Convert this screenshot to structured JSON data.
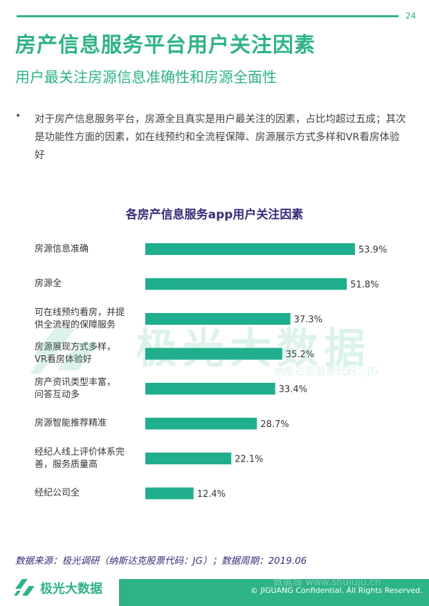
{
  "page_number": "24",
  "title": "房产信息服务平台用户关注因素",
  "subtitle": "用户最关注房源信息准确性和房源全面性",
  "bullet": "对于房产信息服务平台，房源全且真实是用户最关注的因素，占比均超过五成；其次是功能性方面的因素，如在线预约和全流程保障、房源展示方式多样和VR看房体验好",
  "colors": {
    "accent": "#2eb386",
    "title_purple": "#3b2a7a"
  },
  "chart_data": {
    "type": "bar",
    "orientation": "horizontal",
    "title": "各房产信息服务app用户关注因素",
    "categories": [
      [
        "房源信息准确"
      ],
      [
        "房源全"
      ],
      [
        "可在线预约看房，并提",
        "供全流程的保障服务"
      ],
      [
        "房源展现方式多样，",
        "VR看房体验好"
      ],
      [
        "房产资讯类型丰富，",
        "问答互动多"
      ],
      [
        "房源智能推荐精准"
      ],
      [
        "经纪人线上评价体系完",
        "善，服务质量高"
      ],
      [
        "经纪公司全"
      ]
    ],
    "values": [
      53.9,
      51.8,
      37.3,
      35.2,
      33.4,
      28.7,
      22.1,
      12.4
    ],
    "value_labels": [
      "53.9%",
      "51.8%",
      "37.3%",
      "35.2%",
      "33.4%",
      "28.7%",
      "22.1%",
      "12.4%"
    ],
    "unit": "%",
    "bar_color": "#1fae8e",
    "grid": false,
    "legend": "none"
  },
  "watermark": {
    "main": "极光大数据",
    "sub": "纳斯达克股票代码：JG"
  },
  "source": "数据来源：极光调研（纳斯达克股票代码：JG）；数据周期：2019.06",
  "footer": {
    "logo_text": "极光大数据",
    "copyright": "© JIGUANG Confidential. All Rights Reserved.",
    "overlay_watermark": "数据局 www.shujuju.cn"
  }
}
